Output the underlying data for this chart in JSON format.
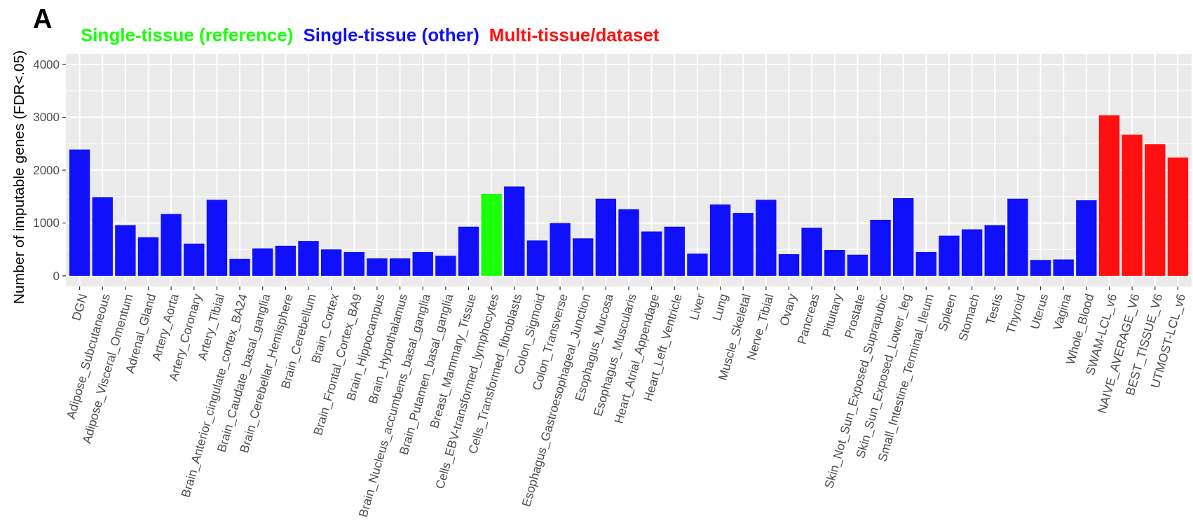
{
  "chart_data": {
    "type": "bar",
    "title": "A",
    "ylabel": "Number of imputable genes (FDR<.05)",
    "categories": [
      "DGN",
      "Adipose_Subcutaneous",
      "Adipose_Visceral_Omentum",
      "Adrenal_Gland",
      "Artery_Aorta",
      "Artery_Coronary",
      "Artery_Tibial",
      "Brain_Anterior_cingulate_cortex_BA24",
      "Brain_Caudate_basal_ganglia",
      "Brain_Cerebellar_Hemisphere",
      "Brain_Cerebellum",
      "Brain_Cortex",
      "Brain_Frontal_Cortex_BA9",
      "Brain_Hippocampus",
      "Brain_Hypothalamus",
      "Brain_Nucleus_accumbens_basal_ganglia",
      "Brain_Putamen_basal_ganglia",
      "Breast_Mammary_Tissue",
      "Cells_EBV-transformed_lymphocytes",
      "Cells_Transformed_fibroblasts",
      "Colon_Sigmoid",
      "Colon_Transverse",
      "Esophagus_Gastroesophageal_Junction",
      "Esophagus_Mucosa",
      "Esophagus_Muscularis",
      "Heart_Atrial_Appendage",
      "Heart_Left_Ventricle",
      "Liver",
      "Lung",
      "Muscle_Skeletal",
      "Nerve_Tibial",
      "Ovary",
      "Pancreas",
      "Pituitary",
      "Prostate",
      "Skin_Not_Sun_Exposed_Suprapubic",
      "Skin_Sun_Exposed_Lower_leg",
      "Small_Intestine_Terminal_Ileum",
      "Spleen",
      "Stomach",
      "Testis",
      "Thyroid",
      "Uterus",
      "Vagina",
      "Whole_Blood",
      "SWAM-LCL_v6",
      "NAIVE_AVERAGE_V6",
      "BEST_TISSUE_V6",
      "UTMOST-LCL_v6"
    ],
    "stacked": true,
    "series": [
      {
        "name": "Single-tissue (reference)",
        "color": "#1aff0a",
        "values": [
          null,
          null,
          null,
          null,
          null,
          null,
          null,
          null,
          null,
          null,
          null,
          null,
          null,
          null,
          null,
          null,
          null,
          null,
          1550,
          null,
          null,
          null,
          null,
          null,
          null,
          null,
          null,
          null,
          null,
          null,
          null,
          null,
          null,
          null,
          null,
          null,
          null,
          null,
          null,
          null,
          null,
          null,
          null,
          null,
          null,
          null,
          null,
          null,
          null
        ]
      },
      {
        "name": "Single-tissue (other)",
        "color": "#1010fa",
        "values": [
          2390,
          1490,
          960,
          730,
          1170,
          610,
          1440,
          320,
          520,
          570,
          660,
          500,
          450,
          330,
          330,
          450,
          380,
          930,
          null,
          1690,
          670,
          1000,
          710,
          1460,
          1260,
          840,
          930,
          420,
          1350,
          1190,
          1440,
          410,
          910,
          490,
          400,
          1060,
          1470,
          450,
          760,
          880,
          960,
          1460,
          300,
          310,
          1430,
          null,
          null,
          null,
          null
        ]
      },
      {
        "name": "Multi-tissue/dataset",
        "color": "#ff1010",
        "values": [
          null,
          null,
          null,
          null,
          null,
          null,
          null,
          null,
          null,
          null,
          null,
          null,
          null,
          null,
          null,
          null,
          null,
          null,
          null,
          null,
          null,
          null,
          null,
          null,
          null,
          null,
          null,
          null,
          null,
          null,
          null,
          null,
          null,
          null,
          null,
          null,
          null,
          null,
          null,
          null,
          null,
          null,
          null,
          null,
          null,
          3040,
          2670,
          2490,
          2240
        ]
      }
    ],
    "ylim": [
      -200,
      4200
    ],
    "yticks": [
      0,
      1000,
      2000,
      3000,
      4000
    ],
    "grid": true,
    "legend": "top left"
  }
}
